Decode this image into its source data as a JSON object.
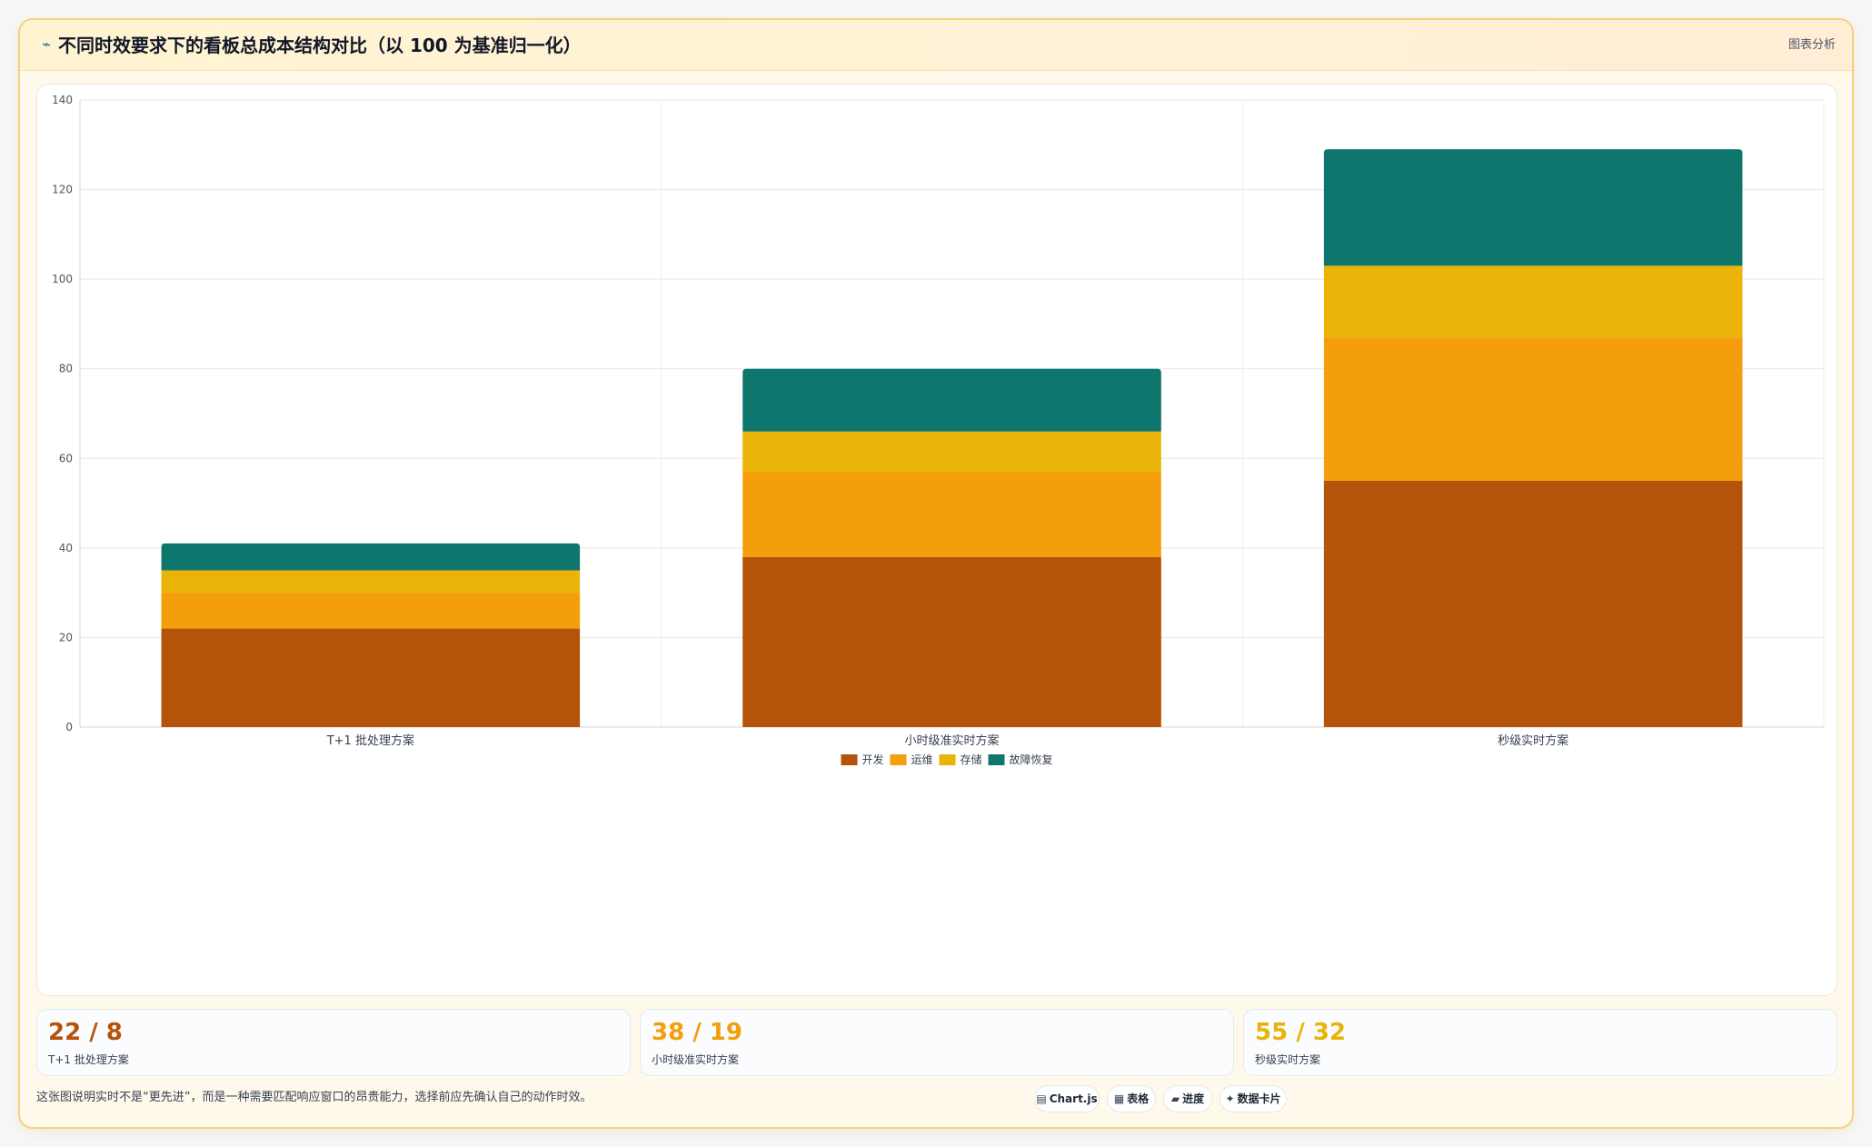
{
  "header": {
    "icon": "chart-line-icon",
    "title": "不同时效要求下的看板总成本结构对比（以 100 为基准归一化）",
    "tag": "图表分析"
  },
  "chart_data": {
    "type": "bar",
    "stacked": true,
    "categories": [
      "T+1 批处理方案",
      "小时级准实时方案",
      "秒级实时方案"
    ],
    "series": [
      {
        "name": "开发",
        "color": "#b4530a",
        "values": [
          22,
          38,
          55
        ]
      },
      {
        "name": "运维",
        "color": "#f59e0b",
        "values": [
          8,
          19,
          32
        ]
      },
      {
        "name": "存储",
        "color": "#eab308",
        "values": [
          5,
          9,
          16
        ]
      },
      {
        "name": "故障恢复",
        "color": "#0f766e",
        "values": [
          6,
          14,
          26
        ]
      }
    ],
    "ylim": [
      0,
      140
    ],
    "yticks": [
      0,
      20,
      40,
      60,
      80,
      100,
      120,
      140
    ],
    "grid": true,
    "legend": "bottom-center"
  },
  "stats": [
    {
      "value": "22 / 8",
      "label": "T+1 批处理方案",
      "color": "#b4530a"
    },
    {
      "value": "38 / 19",
      "label": "小时级准实时方案",
      "color": "#f59e0b"
    },
    {
      "value": "55 / 32",
      "label": "秒级实时方案",
      "color": "#eab308"
    }
  ],
  "note": "这张图说明实时不是“更先进”，而是一种需要匹配响应窗口的昂贵能力，选择前应先确认自己的动作时效。",
  "chips": [
    {
      "icon": "bar-chart-icon",
      "glyph": "▤",
      "label": "Chart.js"
    },
    {
      "icon": "table-icon",
      "glyph": "▦",
      "label": "表格"
    },
    {
      "icon": "progress-icon",
      "glyph": "▰",
      "label": "进度"
    },
    {
      "icon": "sparkle-icon",
      "glyph": "✦",
      "label": "数据卡片"
    }
  ]
}
